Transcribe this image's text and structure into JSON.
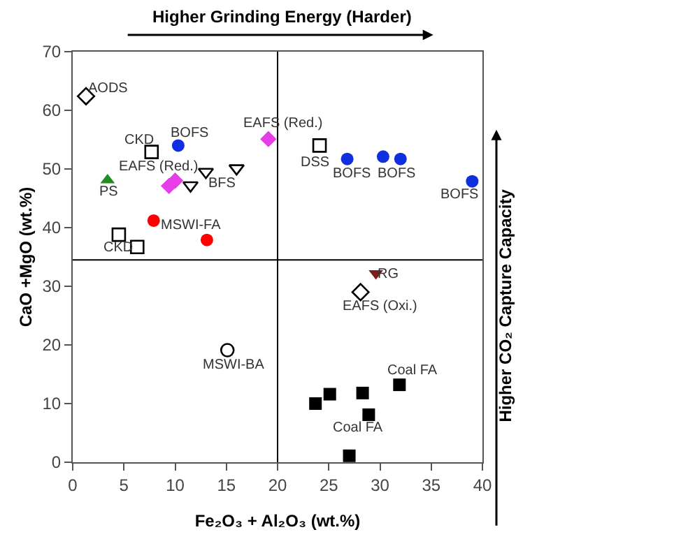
{
  "chart_data": {
    "type": "scatter",
    "xlabel": "Fe₂O₃ + Al₂O₃ (wt.%)",
    "ylabel": "CaO +MgO (wt.%)",
    "xlim": [
      0,
      40
    ],
    "xticks": [
      0,
      5,
      10,
      15,
      20,
      25,
      30,
      35,
      40
    ],
    "ylim": [
      0,
      70
    ],
    "yticks": [
      0,
      10,
      20,
      30,
      40,
      50,
      60,
      70
    ],
    "grid": false,
    "ref_lines": [
      {
        "axis": "x",
        "value": 20,
        "color": "#000000"
      },
      {
        "axis": "y",
        "value": 34.5,
        "color": "#000000"
      }
    ],
    "series": [
      {
        "color": "#000000",
        "marker": "diamond-open",
        "x": [
          1.3,
          28.1
        ],
        "values": [
          62.4,
          29.0
        ]
      },
      {
        "color": "#000000",
        "marker": "square-open",
        "x": [
          7.7,
          4.5,
          6.3,
          24.1
        ],
        "values": [
          52.9,
          38.8,
          36.7,
          54.0
        ]
      },
      {
        "color": "#1030e0",
        "marker": "circle",
        "x": [
          10.3,
          26.8,
          30.3,
          32.0,
          39.0
        ],
        "values": [
          54.0,
          51.7,
          52.1,
          51.7,
          47.9
        ]
      },
      {
        "color": "#228b22",
        "marker": "triangle-up",
        "x": [
          3.4
        ],
        "values": [
          48.1
        ]
      },
      {
        "color": "#e83ce8",
        "marker": "diamond",
        "x": [
          9.4,
          10.0,
          19.1
        ],
        "values": [
          47.1,
          48.0,
          55.1
        ]
      },
      {
        "color": "#000000",
        "marker": "triangle-down-open",
        "x": [
          11.5,
          13.0,
          16.0
        ],
        "values": [
          47.2,
          49.5,
          50.1
        ]
      },
      {
        "color": "#ff0000",
        "marker": "circle",
        "x": [
          7.9,
          13.1
        ],
        "values": [
          41.2,
          37.9
        ]
      },
      {
        "color": "#7b1e1e",
        "marker": "triangle-down",
        "x": [
          29.6
        ],
        "values": [
          32.2
        ]
      },
      {
        "color": "#000000",
        "marker": "circle-open",
        "x": [
          15.1
        ],
        "values": [
          19.1
        ]
      },
      {
        "color": "#000000",
        "marker": "square",
        "x": [
          23.7,
          25.1,
          28.3,
          28.9,
          31.9,
          27.0
        ],
        "values": [
          10.0,
          11.6,
          11.8,
          8.1,
          13.2,
          1.1
        ]
      }
    ],
    "annotations": [
      "Higher Grinding Energy (Harder)",
      "Higher CO₂ Capture Capacity",
      {
        "text": "AODS",
        "x": 1.3,
        "y": 62.4
      },
      {
        "text": "CKD",
        "x": 7.7,
        "y": 52.9
      },
      {
        "text": "BOFS",
        "x": 10.3,
        "y": 54.0
      },
      {
        "text": "EAFS (Red.)",
        "x": 10.0,
        "y": 48.0
      },
      {
        "text": "BFS",
        "x": 11.5,
        "y": 47.2
      },
      {
        "text": "PS",
        "x": 3.4,
        "y": 48.1
      },
      {
        "text": "MSWI-FA",
        "x": 7.9,
        "y": 41.2
      },
      {
        "text": "CKD",
        "x": 6.3,
        "y": 36.7
      },
      {
        "text": "EAFS (Red.)",
        "x": 19.1,
        "y": 55.1
      },
      {
        "text": "DSS",
        "x": 24.1,
        "y": 54.0
      },
      {
        "text": "BOFS",
        "x": 26.8,
        "y": 51.7
      },
      {
        "text": "BOFS",
        "x": 32.0,
        "y": 51.7
      },
      {
        "text": "BOFS",
        "x": 39.0,
        "y": 47.9
      },
      {
        "text": "RG",
        "x": 29.6,
        "y": 32.2
      },
      {
        "text": "EAFS (Oxi.)",
        "x": 28.1,
        "y": 29.0
      },
      {
        "text": "MSWI-BA",
        "x": 15.1,
        "y": 19.1
      },
      {
        "text": "Coal FA",
        "x": 31.9,
        "y": 13.2
      },
      {
        "text": "Coal FA",
        "x": 28.9,
        "y": 8.1
      }
    ]
  }
}
